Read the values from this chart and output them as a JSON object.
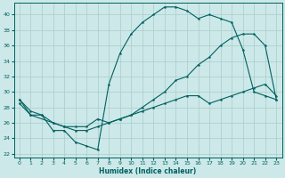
{
  "xlabel": "Humidex (Indice chaleur)",
  "bg_color": "#cce8e8",
  "grid_color": "#aacccc",
  "line_color": "#006060",
  "ylim": [
    21.5,
    41.5
  ],
  "xlim": [
    -0.5,
    23.5
  ],
  "yticks": [
    22,
    24,
    26,
    28,
    30,
    32,
    34,
    36,
    38,
    40
  ],
  "xticks": [
    0,
    1,
    2,
    3,
    4,
    5,
    6,
    7,
    8,
    9,
    10,
    11,
    12,
    13,
    14,
    15,
    16,
    17,
    18,
    19,
    20,
    21,
    22,
    23
  ],
  "line1_x": [
    0,
    1,
    2,
    3,
    4,
    5,
    6,
    7,
    8,
    9,
    10,
    11,
    12,
    13,
    14,
    15,
    16,
    17,
    18,
    19,
    20,
    21,
    22,
    23
  ],
  "line1_y": [
    29,
    27.5,
    27,
    25,
    25,
    23.5,
    23,
    22.5,
    31,
    35,
    37.5,
    39,
    40,
    41,
    41,
    40.5,
    39.5,
    40,
    39.5,
    39,
    35.5,
    30,
    29.5,
    29
  ],
  "line2_x": [
    0,
    1,
    3,
    4,
    5,
    6,
    7,
    8,
    9,
    10,
    11,
    12,
    13,
    14,
    15,
    16,
    17,
    18,
    19,
    20,
    21,
    22,
    23
  ],
  "line2_y": [
    29,
    27,
    26,
    25.5,
    25.5,
    25.5,
    26.5,
    26,
    26.5,
    27,
    28,
    29,
    30,
    31.5,
    32,
    33.5,
    34.5,
    36,
    37,
    37.5,
    37.5,
    36,
    29
  ],
  "line3_x": [
    0,
    1,
    2,
    3,
    4,
    5,
    6,
    7,
    8,
    9,
    10,
    11,
    12,
    13,
    14,
    15,
    16,
    17,
    18,
    19,
    20,
    21,
    22,
    23
  ],
  "line3_y": [
    28.5,
    27,
    27,
    26,
    25.5,
    25,
    25,
    25.5,
    26,
    26.5,
    27,
    27.5,
    28,
    28.5,
    29,
    29.5,
    29.5,
    28.5,
    29,
    29.5,
    30,
    30.5,
    31,
    29.5
  ]
}
